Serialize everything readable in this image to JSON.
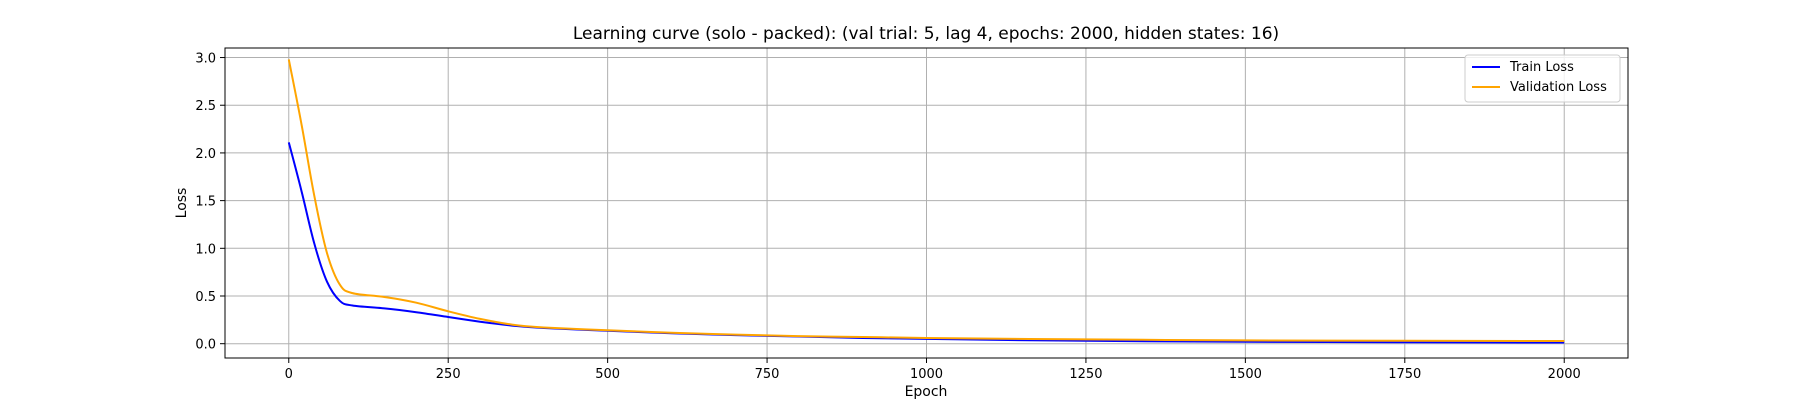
{
  "chart_data": {
    "type": "line",
    "title": "Learning curve (solo - packed): (val trial: 5, lag 4, epochs: 2000, hidden states: 16)",
    "xlabel": "Epoch",
    "ylabel": "Loss",
    "xlim": [
      -100,
      2100
    ],
    "ylim": [
      -0.15,
      3.1
    ],
    "xticks": [
      0,
      250,
      500,
      750,
      1000,
      1250,
      1500,
      1750,
      2000
    ],
    "xtick_labels": [
      "0",
      "250",
      "500",
      "750",
      "1000",
      "1250",
      "1500",
      "1750",
      "2000"
    ],
    "yticks": [
      0.0,
      0.5,
      1.0,
      1.5,
      2.0,
      2.5,
      3.0
    ],
    "ytick_labels": [
      "0.0",
      "0.5",
      "1.0",
      "1.5",
      "2.0",
      "2.5",
      "3.0"
    ],
    "grid": true,
    "legend_position": "top-right",
    "series": [
      {
        "name": "Train Loss",
        "color": "#0000ff",
        "x": [
          0,
          20,
          40,
          60,
          80,
          100,
          150,
          200,
          250,
          300,
          350,
          400,
          500,
          600,
          700,
          800,
          900,
          1000,
          1250,
          1500,
          1750,
          2000
        ],
        "y": [
          2.11,
          1.6,
          1.05,
          0.65,
          0.45,
          0.4,
          0.37,
          0.33,
          0.28,
          0.23,
          0.19,
          0.165,
          0.135,
          0.11,
          0.09,
          0.075,
          0.06,
          0.05,
          0.03,
          0.02,
          0.015,
          0.012
        ]
      },
      {
        "name": "Validation Loss",
        "color": "#ffa500",
        "x": [
          0,
          20,
          40,
          60,
          80,
          100,
          150,
          200,
          250,
          300,
          350,
          400,
          500,
          600,
          700,
          800,
          900,
          1000,
          1250,
          1500,
          1750,
          2000
        ],
        "y": [
          2.98,
          2.3,
          1.55,
          0.95,
          0.62,
          0.53,
          0.49,
          0.43,
          0.34,
          0.26,
          0.2,
          0.17,
          0.14,
          0.115,
          0.095,
          0.08,
          0.07,
          0.06,
          0.045,
          0.035,
          0.03,
          0.028
        ]
      }
    ]
  }
}
